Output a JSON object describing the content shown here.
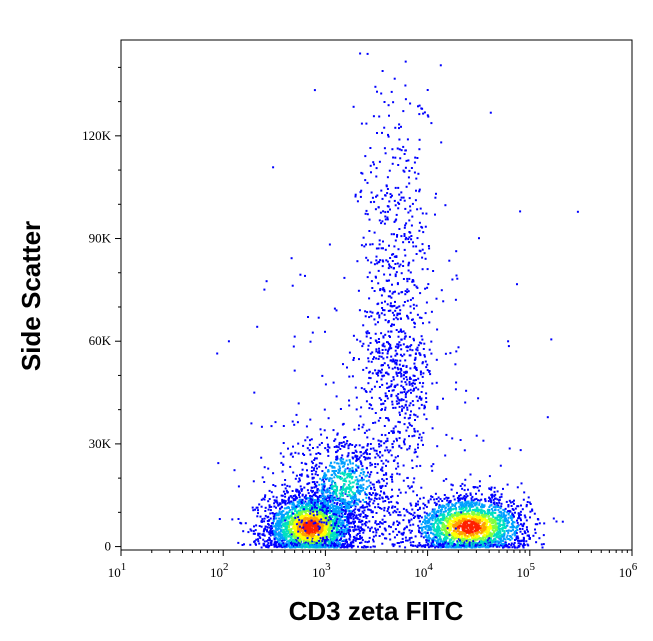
{
  "chart_data": {
    "type": "scatter",
    "title": "",
    "xlabel": "CD3 zeta FITC",
    "ylabel": "Side Scatter",
    "x_scale": "log",
    "xlim": [
      10,
      1000000
    ],
    "ylim": [
      -1000,
      148000
    ],
    "x_ticks": [
      {
        "value": 10,
        "base": "10",
        "exp": "1"
      },
      {
        "value": 100,
        "base": "10",
        "exp": "2"
      },
      {
        "value": 1000,
        "base": "10",
        "exp": "3"
      },
      {
        "value": 10000,
        "base": "10",
        "exp": "4"
      },
      {
        "value": 100000,
        "base": "10",
        "exp": "5"
      },
      {
        "value": 1000000,
        "base": "10",
        "exp": "6"
      }
    ],
    "y_ticks": [
      {
        "value": 0,
        "label": "0"
      },
      {
        "value": 30000,
        "label": "30K"
      },
      {
        "value": 60000,
        "label": "60K"
      },
      {
        "value": 90000,
        "label": "90K"
      },
      {
        "value": 120000,
        "label": "120K"
      }
    ],
    "density_colors": [
      "#0000ff",
      "#00a0ff",
      "#00e0c0",
      "#80ff40",
      "#ffff00",
      "#ffa000",
      "#ff2000"
    ],
    "populations": [
      {
        "name": "cd3-negative",
        "x_center": 700,
        "y_center": 6000,
        "x_spread_decades": 0.22,
        "y_spread": 5000,
        "count": 2600
      },
      {
        "name": "cd3-positive",
        "x_center": 25000,
        "y_center": 6000,
        "x_spread_decades": 0.28,
        "y_spread": 4500,
        "count": 2200
      },
      {
        "name": "bridge",
        "x_center": 1500,
        "y_center": 18000,
        "x_spread_decades": 0.25,
        "y_spread": 8000,
        "count": 900
      },
      {
        "name": "high-ssc-streak",
        "x_center": 5000,
        "y_center": 60000,
        "x_spread_decades": 0.18,
        "y_spread": 38000,
        "count": 900
      },
      {
        "name": "sparse-background",
        "x_center": 3000,
        "y_center": 30000,
        "x_spread_decades": 0.7,
        "y_spread": 35000,
        "count": 250
      }
    ]
  }
}
